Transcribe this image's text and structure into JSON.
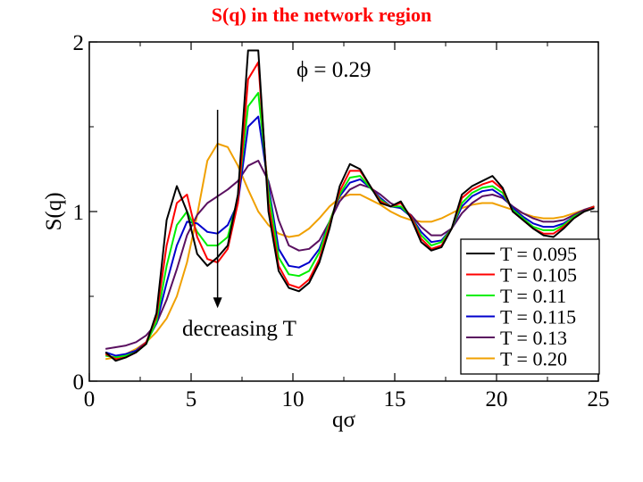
{
  "page_title": "S(q) in the network region",
  "chart_data": {
    "type": "line",
    "title": "S(q) in the network region",
    "xlabel": "qσ",
    "ylabel": "S(q)",
    "xlim": [
      0,
      25
    ],
    "ylim": [
      0,
      2
    ],
    "xticks": [
      0,
      5,
      10,
      15,
      20,
      25
    ],
    "yticks": [
      0,
      1,
      2
    ],
    "grid": false,
    "legend_position": "bottom-right",
    "annotations": {
      "phi": "ϕ = 0.29",
      "trend": "decreasing T"
    },
    "arrow": {
      "x": 6.3,
      "y_from": 1.6,
      "y_to": 0.43
    },
    "x": [
      0.8,
      1.3,
      1.8,
      2.3,
      2.8,
      3.3,
      3.8,
      4.3,
      4.8,
      5.3,
      5.8,
      6.3,
      6.8,
      7.3,
      7.8,
      8.3,
      8.8,
      9.3,
      9.8,
      10.3,
      10.8,
      11.3,
      11.8,
      12.3,
      12.8,
      13.3,
      13.8,
      14.3,
      14.8,
      15.3,
      15.8,
      16.3,
      16.8,
      17.3,
      17.8,
      18.3,
      18.8,
      19.3,
      19.8,
      20.3,
      20.8,
      21.3,
      21.8,
      22.3,
      22.8,
      23.3,
      23.8,
      24.3,
      24.8
    ],
    "series": [
      {
        "name": "T = 0.095",
        "color": "#000000",
        "values": [
          0.17,
          0.12,
          0.14,
          0.17,
          0.22,
          0.4,
          0.95,
          1.15,
          1.0,
          0.75,
          0.68,
          0.73,
          0.8,
          1.1,
          1.95,
          1.95,
          1.0,
          0.65,
          0.55,
          0.53,
          0.58,
          0.7,
          0.9,
          1.15,
          1.28,
          1.25,
          1.15,
          1.05,
          1.03,
          1.06,
          0.96,
          0.82,
          0.77,
          0.79,
          0.9,
          1.1,
          1.15,
          1.18,
          1.21,
          1.14,
          1.0,
          0.95,
          0.9,
          0.86,
          0.85,
          0.9,
          0.96,
          1.0,
          1.02
        ]
      },
      {
        "name": "T = 0.105",
        "color": "#ff0000",
        "values": [
          0.16,
          0.13,
          0.14,
          0.17,
          0.23,
          0.38,
          0.8,
          1.05,
          1.1,
          0.85,
          0.72,
          0.7,
          0.78,
          1.05,
          1.78,
          1.88,
          1.05,
          0.68,
          0.57,
          0.55,
          0.6,
          0.72,
          0.92,
          1.12,
          1.24,
          1.24,
          1.15,
          1.06,
          1.03,
          1.05,
          0.97,
          0.84,
          0.78,
          0.8,
          0.9,
          1.08,
          1.13,
          1.16,
          1.18,
          1.13,
          1.0,
          0.95,
          0.9,
          0.87,
          0.87,
          0.91,
          0.96,
          1.0,
          1.03
        ]
      },
      {
        "name": "T = 0.11",
        "color": "#00ee00",
        "values": [
          0.15,
          0.14,
          0.15,
          0.17,
          0.22,
          0.35,
          0.68,
          0.92,
          1.0,
          0.88,
          0.8,
          0.8,
          0.85,
          1.08,
          1.62,
          1.7,
          1.12,
          0.73,
          0.63,
          0.62,
          0.65,
          0.76,
          0.94,
          1.1,
          1.2,
          1.21,
          1.14,
          1.07,
          1.03,
          1.03,
          0.97,
          0.86,
          0.8,
          0.82,
          0.9,
          1.05,
          1.11,
          1.14,
          1.15,
          1.11,
          1.01,
          0.96,
          0.91,
          0.89,
          0.89,
          0.92,
          0.97,
          1.0,
          1.03
        ]
      },
      {
        "name": "T = 0.115",
        "color": "#0000cc",
        "values": [
          0.17,
          0.15,
          0.16,
          0.18,
          0.23,
          0.34,
          0.58,
          0.8,
          0.94,
          0.93,
          0.88,
          0.87,
          0.92,
          1.05,
          1.5,
          1.56,
          1.15,
          0.78,
          0.68,
          0.67,
          0.7,
          0.78,
          0.94,
          1.09,
          1.17,
          1.19,
          1.14,
          1.08,
          1.03,
          1.02,
          0.97,
          0.88,
          0.82,
          0.83,
          0.9,
          1.03,
          1.09,
          1.12,
          1.13,
          1.09,
          1.02,
          0.97,
          0.93,
          0.91,
          0.91,
          0.93,
          0.97,
          1.0,
          1.03
        ]
      },
      {
        "name": "T = 0.13",
        "color": "#5a1060",
        "values": [
          0.19,
          0.2,
          0.21,
          0.23,
          0.27,
          0.34,
          0.48,
          0.66,
          0.86,
          0.98,
          1.05,
          1.09,
          1.13,
          1.18,
          1.27,
          1.3,
          1.18,
          0.95,
          0.8,
          0.77,
          0.78,
          0.83,
          0.94,
          1.06,
          1.13,
          1.16,
          1.14,
          1.1,
          1.05,
          1.02,
          0.98,
          0.91,
          0.86,
          0.86,
          0.9,
          0.99,
          1.05,
          1.09,
          1.1,
          1.08,
          1.03,
          0.99,
          0.96,
          0.94,
          0.94,
          0.95,
          0.98,
          1.01,
          1.03
        ]
      },
      {
        "name": "T = 0.20",
        "color": "#f0a000",
        "values": [
          0.13,
          0.14,
          0.16,
          0.19,
          0.23,
          0.29,
          0.37,
          0.5,
          0.7,
          0.98,
          1.3,
          1.4,
          1.38,
          1.27,
          1.13,
          1.0,
          0.92,
          0.87,
          0.85,
          0.86,
          0.9,
          0.96,
          1.03,
          1.08,
          1.1,
          1.1,
          1.07,
          1.04,
          1.0,
          0.97,
          0.95,
          0.94,
          0.94,
          0.96,
          0.99,
          1.02,
          1.04,
          1.05,
          1.05,
          1.03,
          1.01,
          0.99,
          0.97,
          0.96,
          0.96,
          0.97,
          0.99,
          1.01,
          1.03
        ]
      }
    ]
  }
}
